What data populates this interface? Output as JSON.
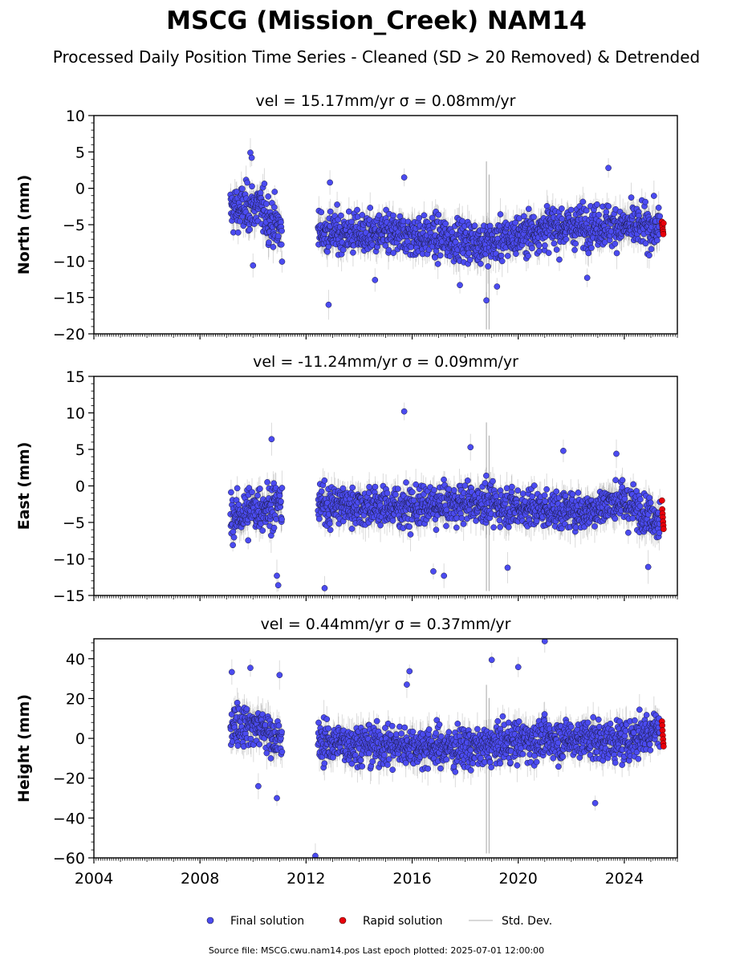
{
  "chart_data": {
    "type": "scatter",
    "title": "MSCG (Mission_Creek) NAM14",
    "subtitle": "Processed Daily Position Time Series - Cleaned (SD > 20 Removed) & Detrended",
    "x_range": [
      "2004-01-01",
      "2026-01-01"
    ],
    "x_ticks": [
      "2004",
      "2008",
      "2012",
      "2016",
      "2020",
      "2024"
    ],
    "grid": false,
    "legend": {
      "placement": "bottom-center",
      "entries": [
        {
          "label": "Final solution",
          "color": "#4b4bf0"
        },
        {
          "label": "Rapid solution",
          "color": "#e8000b"
        },
        {
          "label": "Std. Dev.",
          "color": "#cccccc"
        }
      ]
    },
    "footer": "Source file: MSCG.cwu.nam14.pos  Last epoch plotted: 2025-07-01 12:00:00",
    "panels": [
      {
        "name": "north",
        "title": "vel = 15.17mm/yr   σ = 0.08mm/yr",
        "ylabel": "North (mm)",
        "ylim": [
          -20,
          10
        ],
        "yticks": [
          10,
          5,
          0,
          -5,
          -10,
          -15,
          -20
        ],
        "segments": [
          {
            "start": 2009.15,
            "end": 2011.1,
            "mean": [
              [
                2009.15,
                -3
              ],
              [
                2010.2,
                -2.5
              ],
              [
                2011.1,
                -6
              ]
            ],
            "spread": 1.6
          },
          {
            "start": 2012.45,
            "end": 2025.35,
            "mean": [
              [
                2012.45,
                -6
              ],
              [
                2016.0,
                -6.5
              ],
              [
                2019.0,
                -7.5
              ],
              [
                2021.0,
                -5.5
              ],
              [
                2023.0,
                -5
              ],
              [
                2025.35,
                -5.5
              ]
            ],
            "spread": 1.4
          }
        ],
        "outliers": [
          [
            2009.9,
            4.9
          ],
          [
            2009.95,
            4.2
          ],
          [
            2012.9,
            0.8
          ],
          [
            2012.85,
            -16
          ],
          [
            2015.7,
            1.5
          ],
          [
            2018.8,
            -15.4
          ],
          [
            2019.2,
            -13.5
          ],
          [
            2023.4,
            2.8
          ],
          [
            2022.6,
            -12.3
          ],
          [
            2010.0,
            -10.6
          ],
          [
            2017.8,
            -13.3
          ],
          [
            2014.6,
            -12.6
          ]
        ],
        "rapid": [
          -4.6,
          -5.0,
          -5.3,
          -5.7,
          -6.0,
          -6.3,
          -4.8
        ]
      },
      {
        "name": "east",
        "title": "vel = -11.24mm/yr   σ = 0.09mm/yr",
        "ylabel": "East (mm)",
        "ylim": [
          -15,
          15
        ],
        "yticks": [
          15,
          10,
          5,
          0,
          -5,
          -10,
          -15
        ],
        "segments": [
          {
            "start": 2009.15,
            "end": 2011.1,
            "mean": [
              [
                2009.15,
                -4.5
              ],
              [
                2010.2,
                -3
              ],
              [
                2011.1,
                -2.5
              ]
            ],
            "spread": 1.5
          },
          {
            "start": 2012.45,
            "end": 2025.35,
            "mean": [
              [
                2012.45,
                -2.5
              ],
              [
                2016.0,
                -3
              ],
              [
                2018.5,
                -2.2
              ],
              [
                2020.0,
                -3
              ],
              [
                2022.5,
                -3.5
              ],
              [
                2023.8,
                -2
              ],
              [
                2025.35,
                -4.5
              ]
            ],
            "spread": 1.3
          }
        ],
        "outliers": [
          [
            2010.7,
            6.4
          ],
          [
            2015.7,
            10.2
          ],
          [
            2018.2,
            5.3
          ],
          [
            2012.7,
            -14
          ],
          [
            2010.9,
            -12.3
          ],
          [
            2010.95,
            -13.6
          ],
          [
            2016.8,
            -11.7
          ],
          [
            2021.7,
            4.8
          ],
          [
            2023.7,
            4.4
          ],
          [
            2024.9,
            -11.1
          ],
          [
            2019.6,
            -11.2
          ],
          [
            2017.2,
            -12.3
          ]
        ],
        "rapid": [
          -2.0,
          -3.2,
          -3.8,
          -4.3,
          -4.9,
          -5.4,
          -5.9
        ]
      },
      {
        "name": "height",
        "title": "vel = 0.44mm/yr   σ = 0.37mm/yr",
        "ylabel": "Height (mm)",
        "ylim": [
          -60,
          50
        ],
        "yticks": [
          40,
          20,
          0,
          -20,
          -40,
          -60
        ],
        "segments": [
          {
            "start": 2009.15,
            "end": 2011.1,
            "mean": [
              [
                2009.15,
                8
              ],
              [
                2010.2,
                6
              ],
              [
                2011.1,
                -2
              ]
            ],
            "spread": 5
          },
          {
            "start": 2012.45,
            "end": 2025.35,
            "mean": [
              [
                2012.45,
                -2
              ],
              [
                2016.0,
                -4
              ],
              [
                2018.5,
                -5
              ],
              [
                2020.0,
                -1
              ],
              [
                2022.5,
                0
              ],
              [
                2024.0,
                -2
              ],
              [
                2025.35,
                6
              ]
            ],
            "spread": 5
          }
        ],
        "outliers": [
          [
            2009.2,
            33.3
          ],
          [
            2009.9,
            35.4
          ],
          [
            2011.0,
            31.8
          ],
          [
            2012.35,
            -59
          ],
          [
            2015.9,
            33.7
          ],
          [
            2015.8,
            27
          ],
          [
            2019.0,
            39.4
          ],
          [
            2020.0,
            35.8
          ],
          [
            2021.0,
            48.8
          ],
          [
            2010.2,
            -24
          ],
          [
            2010.9,
            -30
          ],
          [
            2022.9,
            -32.5
          ]
        ],
        "rapid": [
          8.5,
          6.5,
          4.0,
          1.5,
          -0.5,
          -2.5,
          -4.0
        ]
      }
    ]
  }
}
